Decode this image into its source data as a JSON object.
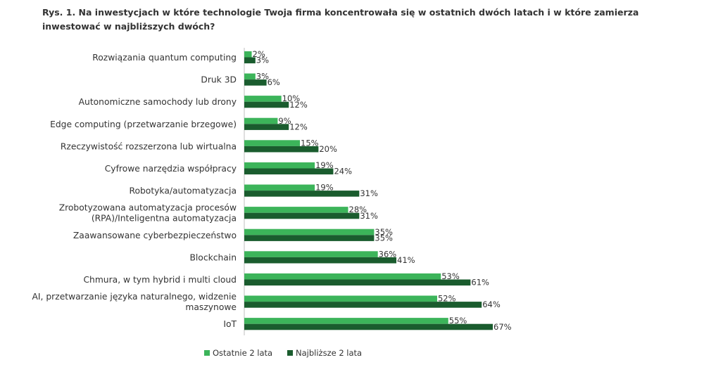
{
  "title": "Rys. 1. Na inwestycjach w które technologie Twoja firma koncentrowała się w ostatnich dwóch latach i w które zamierza inwestować w najbliższych dwóch?",
  "colors": {
    "ostatnie": "#3cb45a",
    "najblizsze": "#1a5c2e"
  },
  "chart_data": {
    "type": "bar",
    "orientation": "horizontal",
    "categories": [
      [
        "Rozwiązania quantum computing"
      ],
      [
        "Druk 3D"
      ],
      [
        "Autonomiczne samochody lub drony"
      ],
      [
        "Edge computing (przetwarzanie brzegowe)"
      ],
      [
        "Rzeczywistość rozszerzona lub wirtualna"
      ],
      [
        "Cyfrowe narzędzia współpracy"
      ],
      [
        "Robotyka/automatyzacja"
      ],
      [
        "Zrobotyzowana automatyzacja procesów",
        "(RPA)/Inteligentna automatyzacja"
      ],
      [
        "Zaawansowane cyberbezpieczeństwo"
      ],
      [
        "Blockchain"
      ],
      [
        "Chmura, w tym hybrid i multi cloud"
      ],
      [
        "AI, przetwarzanie języka naturalnego, widzenie",
        "maszynowe"
      ],
      [
        "IoT"
      ]
    ],
    "series": [
      {
        "name": "Ostatnie 2 lata",
        "values": [
          2,
          3,
          10,
          9,
          15,
          19,
          19,
          28,
          35,
          36,
          53,
          52,
          55
        ]
      },
      {
        "name": "Najbliższe 2 lata",
        "values": [
          3,
          6,
          12,
          12,
          20,
          24,
          31,
          31,
          35,
          41,
          61,
          64,
          67
        ]
      }
    ],
    "value_suffix": "%",
    "xlim": [
      0,
      67
    ],
    "legend_position": "bottom-center",
    "grid": false
  }
}
